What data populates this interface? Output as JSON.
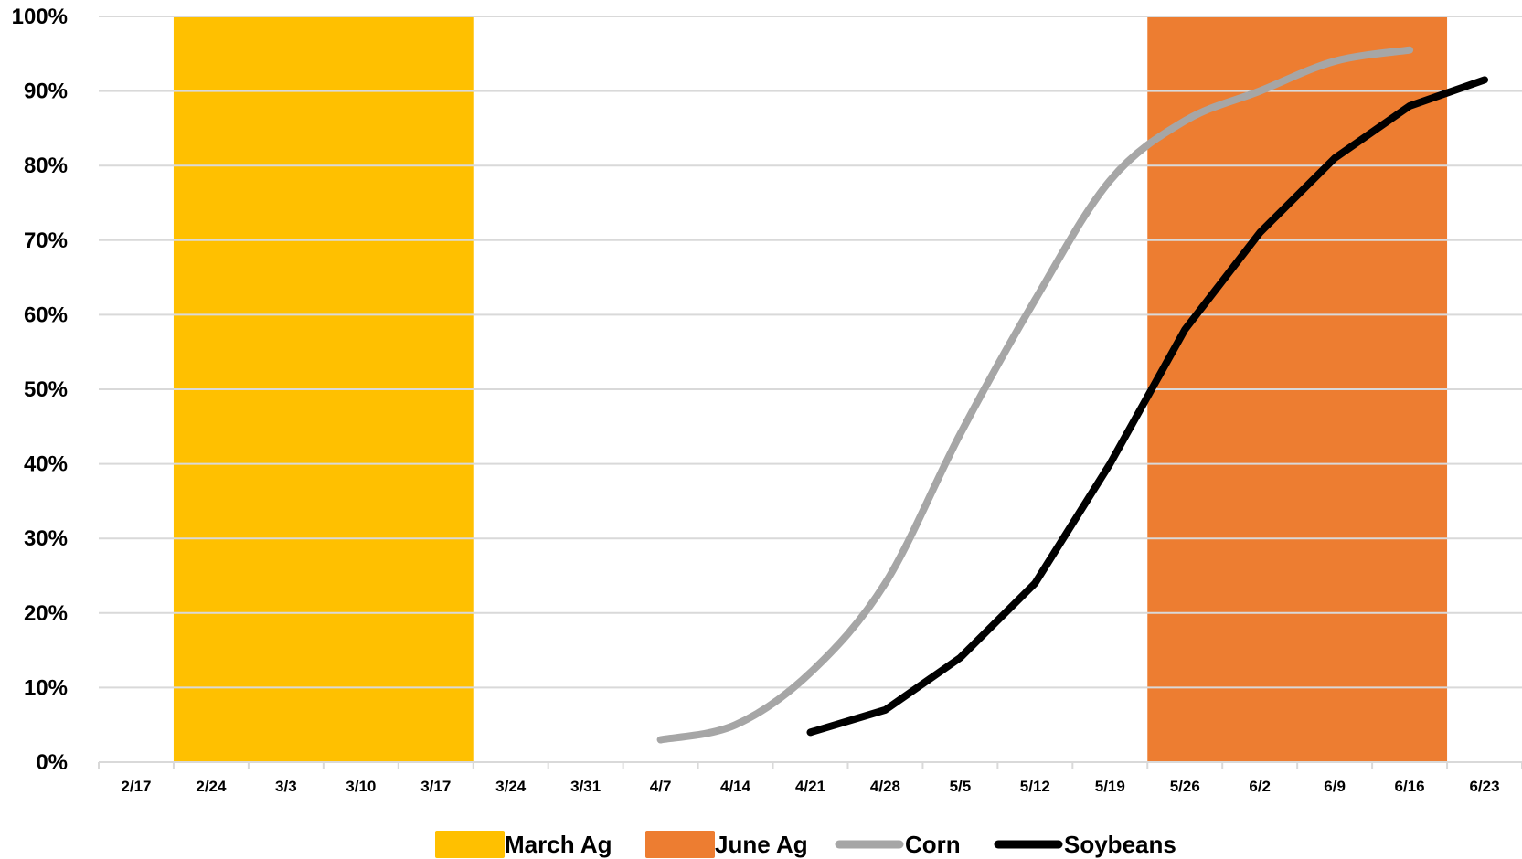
{
  "chart_data": {
    "type": "line",
    "title": "",
    "xlabel": "",
    "ylabel": "",
    "ylim": [
      0,
      100
    ],
    "y_ticks": [
      "0%",
      "10%",
      "20%",
      "30%",
      "40%",
      "50%",
      "60%",
      "70%",
      "80%",
      "90%",
      "100%"
    ],
    "categories": [
      "2/17",
      "2/24",
      "3/3",
      "3/10",
      "3/17",
      "3/24",
      "3/31",
      "4/7",
      "4/14",
      "4/21",
      "4/28",
      "5/5",
      "5/12",
      "5/19",
      "5/26",
      "6/2",
      "6/9",
      "6/16",
      "6/23"
    ],
    "grid": "horizontal",
    "legend_position": "bottom",
    "shaded_periods": [
      {
        "name": "March Ag",
        "color": "#FFC000",
        "from": "2/24",
        "to": "3/17"
      },
      {
        "name": "June Ag",
        "color": "#ED7D31",
        "from": "5/26",
        "to": "6/16"
      }
    ],
    "series": [
      {
        "name": "Corn",
        "color": "#A6A6A6",
        "smooth": true,
        "values": [
          null,
          null,
          null,
          null,
          null,
          null,
          null,
          3,
          5,
          12,
          24,
          44,
          62,
          78,
          86,
          90,
          94,
          95.5,
          null
        ]
      },
      {
        "name": "Soybeans",
        "color": "#000000",
        "smooth": false,
        "values": [
          null,
          null,
          null,
          null,
          null,
          null,
          null,
          null,
          null,
          4,
          7,
          14,
          24,
          40,
          58,
          71,
          81,
          88,
          91.5
        ]
      }
    ]
  }
}
